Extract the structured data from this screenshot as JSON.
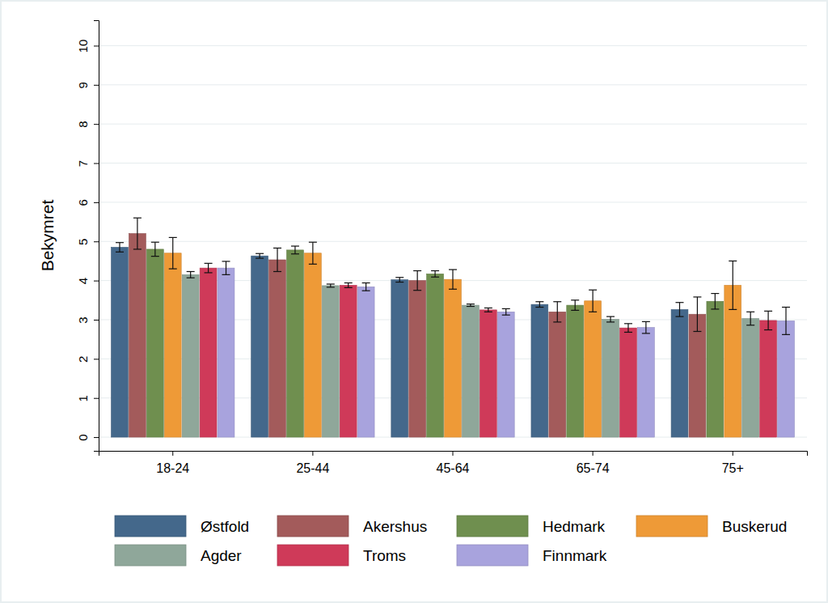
{
  "chart_data": {
    "type": "bar",
    "y_label": "Bekymret",
    "categories": [
      "18-24",
      "25-44",
      "45-64",
      "65-74",
      "75+"
    ],
    "series": [
      {
        "name": "Østfold",
        "color": "#44688b",
        "values": [
          4.85,
          4.63,
          4.02,
          3.39,
          3.26
        ],
        "errors": [
          0.12,
          0.06,
          0.06,
          0.07,
          0.18
        ]
      },
      {
        "name": "Akershus",
        "color": "#a35b5b",
        "values": [
          5.2,
          4.53,
          4.0,
          3.2,
          3.14
        ],
        "errors": [
          0.4,
          0.3,
          0.25,
          0.26,
          0.44
        ]
      },
      {
        "name": "Hedmark",
        "color": "#6f8f4f",
        "values": [
          4.8,
          4.78,
          4.17,
          3.37,
          3.47
        ],
        "errors": [
          0.18,
          0.1,
          0.08,
          0.13,
          0.2
        ]
      },
      {
        "name": "Buskerud",
        "color": "#ee9a37",
        "values": [
          4.7,
          4.7,
          4.03,
          3.48,
          3.88
        ],
        "errors": [
          0.4,
          0.28,
          0.25,
          0.28,
          0.62
        ]
      },
      {
        "name": "Agder",
        "color": "#8fa79a",
        "values": [
          4.15,
          3.87,
          3.37,
          3.01,
          3.03
        ],
        "errors": [
          0.08,
          0.04,
          0.03,
          0.07,
          0.17
        ]
      },
      {
        "name": "Troms",
        "color": "#cf3a59",
        "values": [
          4.32,
          3.88,
          3.25,
          2.79,
          2.98
        ],
        "errors": [
          0.12,
          0.06,
          0.05,
          0.11,
          0.24
        ]
      },
      {
        "name": "Finnmark",
        "color": "#a8a3dd",
        "values": [
          4.32,
          3.84,
          3.2,
          2.8,
          2.97
        ],
        "errors": [
          0.17,
          0.1,
          0.08,
          0.15,
          0.35
        ]
      }
    ],
    "ylim": [
      -0.35,
      10.65
    ],
    "yticks": [
      0,
      1,
      2,
      3,
      4,
      5,
      6,
      7,
      8,
      9,
      10
    ],
    "grid": true,
    "legend": "bottom"
  }
}
